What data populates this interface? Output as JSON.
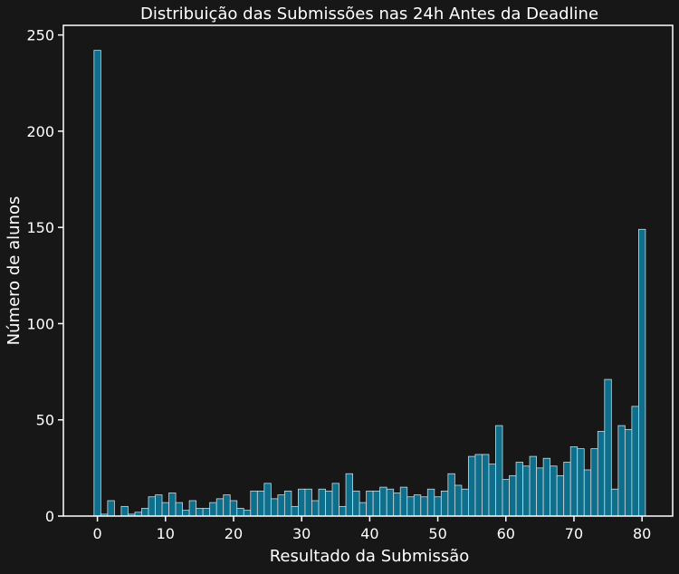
{
  "chart_data": {
    "type": "bar",
    "title": "Distribuição das Submissões nas 24h Antes da Deadline",
    "xlabel": "Resultado da Submissão",
    "ylabel": "Número de alunos",
    "xlim": [
      -5,
      84.5
    ],
    "ylim": [
      0,
      255
    ],
    "xticks": [
      0,
      10,
      20,
      30,
      40,
      50,
      60,
      70,
      80
    ],
    "yticks": [
      0,
      50,
      100,
      150,
      200,
      250
    ],
    "grid": false,
    "bar_color": "#0e6f8c",
    "edge_color": "#cfd8dc",
    "background": "#171717",
    "x": [
      0,
      1,
      2,
      3,
      4,
      5,
      6,
      7,
      8,
      9,
      10,
      11,
      12,
      13,
      14,
      15,
      16,
      17,
      18,
      19,
      20,
      21,
      22,
      23,
      24,
      25,
      26,
      27,
      28,
      29,
      30,
      31,
      32,
      33,
      34,
      35,
      36,
      37,
      38,
      39,
      40,
      41,
      42,
      43,
      44,
      45,
      46,
      47,
      48,
      49,
      50,
      51,
      52,
      53,
      54,
      55,
      56,
      57,
      58,
      59,
      60,
      61,
      62,
      63,
      64,
      65,
      66,
      67,
      68,
      69,
      70,
      71,
      72,
      73,
      74,
      75,
      76,
      77,
      78,
      79,
      80
    ],
    "values": [
      242,
      1,
      8,
      0,
      5,
      1,
      2,
      4,
      10,
      11,
      7,
      12,
      7,
      3,
      8,
      4,
      4,
      7,
      9,
      11,
      8,
      4,
      3,
      13,
      13,
      17,
      9,
      11,
      13,
      5,
      14,
      14,
      8,
      14,
      13,
      17,
      5,
      22,
      13,
      7,
      13,
      13,
      15,
      14,
      12,
      15,
      10,
      11,
      10,
      14,
      10,
      13,
      22,
      16,
      14,
      31,
      32,
      32,
      27,
      47,
      19,
      21,
      28,
      26,
      31,
      25,
      30,
      26,
      21,
      28,
      36,
      35,
      24,
      35,
      44,
      71,
      14,
      47,
      45,
      57,
      149
    ]
  }
}
